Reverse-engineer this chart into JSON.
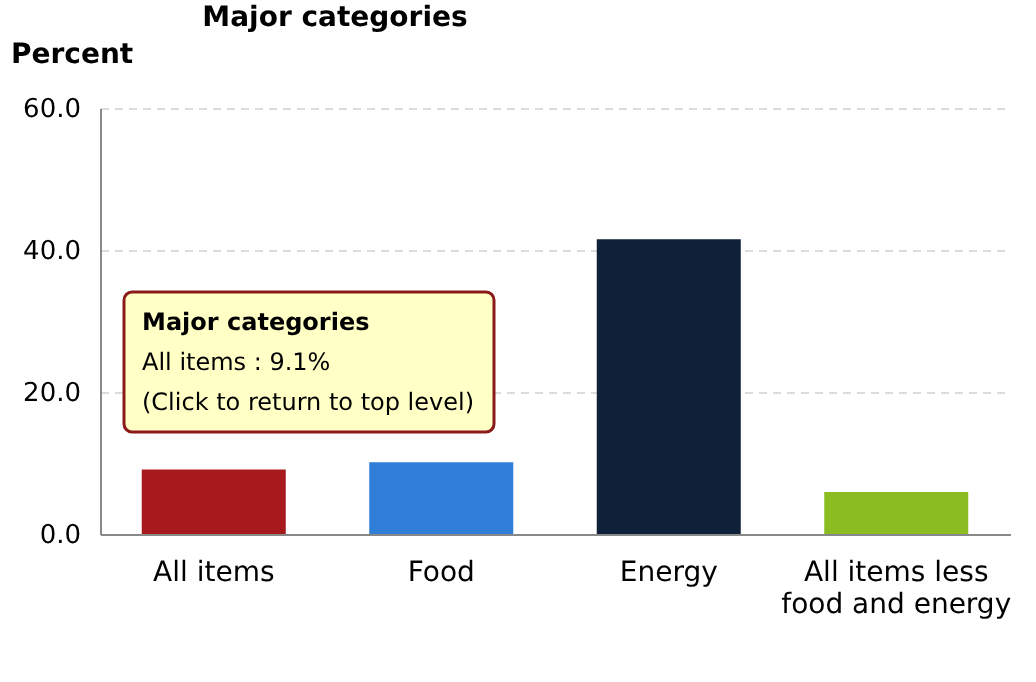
{
  "chart_data": {
    "type": "bar",
    "title": "Major categories",
    "ylabel": "Percent",
    "categories": [
      "All items",
      "Food",
      "Energy",
      "All items less food and energy"
    ],
    "values": [
      9.1,
      10.1,
      41.5,
      5.9
    ],
    "colors": [
      "#a6191c",
      "#2f7ed8",
      "#0f2139",
      "#8bbc21"
    ],
    "ylim": [
      0,
      60
    ],
    "yticks": [
      {
        "value": 0,
        "label": "0.0"
      },
      {
        "value": 20,
        "label": "20.0"
      },
      {
        "value": 40,
        "label": "40.0"
      },
      {
        "value": 60,
        "label": "60.0"
      }
    ],
    "grid": "y",
    "annotations": [
      "Major categories",
      "All items : 9.1%",
      "(Click to return to top level)"
    ]
  }
}
